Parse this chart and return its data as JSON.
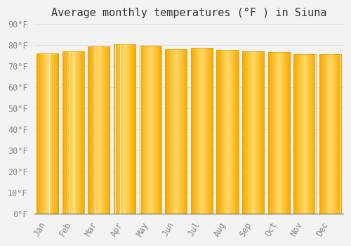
{
  "title": "Average monthly temperatures (°F ) in Siuna",
  "months": [
    "Jan",
    "Feb",
    "Mar",
    "Apr",
    "May",
    "Jun",
    "Jul",
    "Aug",
    "Sep",
    "Oct",
    "Nov",
    "Dec"
  ],
  "values": [
    76.0,
    77.2,
    79.3,
    80.4,
    79.9,
    78.1,
    78.6,
    77.6,
    77.0,
    76.9,
    75.9,
    75.6
  ],
  "bar_color_center": "#FFD966",
  "bar_color_edge": "#F5A800",
  "bar_edge_color": "#E8A000",
  "background_color": "#F2F2F2",
  "grid_color": "#DDDDDD",
  "ylim": [
    0,
    90
  ],
  "yticks": [
    0,
    10,
    20,
    30,
    40,
    50,
    60,
    70,
    80,
    90
  ],
  "title_fontsize": 11,
  "tick_fontsize": 8.5,
  "bar_width": 0.85
}
